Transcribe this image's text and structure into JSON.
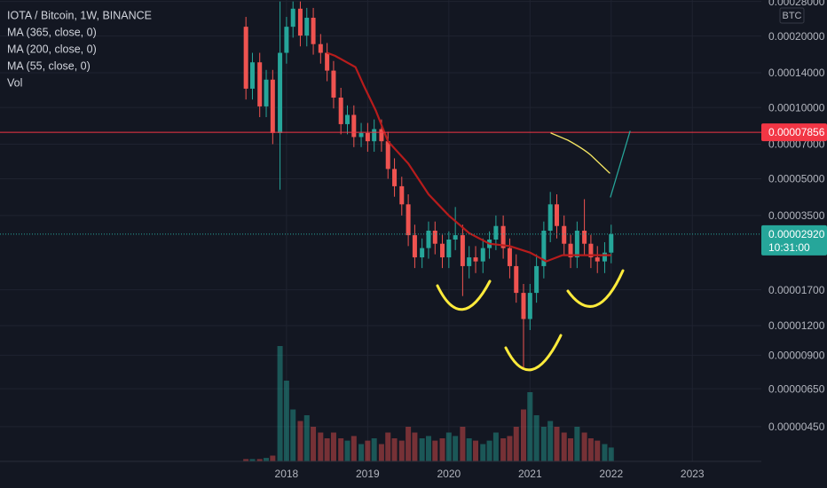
{
  "chart_data": {
    "type": "candlestick",
    "title": "IOTA / Bitcoin, 1W, BINANCE",
    "indicators": [
      "MA (365, close, 0)",
      "MA (200, close, 0)",
      "MA (55, close, 0)",
      "Vol"
    ],
    "currency": "BTC",
    "log_scale": true,
    "grid": true,
    "up_color": "#26a69a",
    "down_color": "#ef5350",
    "x": [
      2017.5,
      2017.58,
      2017.67,
      2017.75,
      2017.83,
      2017.92,
      2018,
      2018.08,
      2018.17,
      2018.25,
      2018.33,
      2018.42,
      2018.5,
      2018.58,
      2018.67,
      2018.75,
      2018.83,
      2018.92,
      2019,
      2019.08,
      2019.17,
      2019.25,
      2019.33,
      2019.42,
      2019.5,
      2019.58,
      2019.67,
      2019.75,
      2019.83,
      2019.92,
      2020,
      2020.08,
      2020.17,
      2020.25,
      2020.33,
      2020.42,
      2020.5,
      2020.58,
      2020.67,
      2020.75,
      2020.83,
      2020.92,
      2021,
      2021.08,
      2021.17,
      2021.25,
      2021.33,
      2021.42,
      2021.5,
      2021.58,
      2021.67,
      2021.75,
      2021.83,
      2021.92,
      2022
    ],
    "open": [
      0.000219,
      0.00012,
      0.000155,
      0.000101,
      0.000131,
      7.8e-05,
      0.00017,
      0.000219,
      0.000261,
      0.000201,
      0.000239,
      0.000185,
      0.00017,
      0.000143,
      0.00011,
      8.5e-05,
      9.3e-05,
      7.5e-05,
      7.8e-05,
      7.2e-05,
      8.1e-05,
      7.2e-05,
      5.5e-05,
      4.65e-05,
      3.9e-05,
      2.89e-05,
      2.33e-05,
      2.55e-05,
      3.02e-05,
      2.66e-05,
      2.33e-05,
      2.77e-05,
      2.89e-05,
      2.14e-05,
      2.33e-05,
      2.24e-05,
      2.55e-05,
      2.77e-05,
      3.16e-05,
      2.55e-05,
      2.14e-05,
      1.65e-05,
      1.28e-05,
      1.65e-05,
      2.14e-05,
      3.02e-05,
      3.9e-05,
      3.16e-05,
      2.66e-05,
      2.33e-05,
      3.02e-05,
      2.66e-05,
      2.33e-05,
      2.24e-05,
      2.44e-05
    ],
    "high": [
      0.000241,
      0.00017,
      0.00017,
      0.000144,
      0.000144,
      0.00028,
      0.000241,
      0.00028,
      0.00028,
      0.000263,
      0.000263,
      0.000204,
      0.000187,
      0.000157,
      0.000121,
      0.000102,
      0.000102,
      8.6e-05,
      8.6e-05,
      8.9e-05,
      8.9e-05,
      7.9e-05,
      6.1e-05,
      5.1e-05,
      4.3e-05,
      3.2e-05,
      2.8e-05,
      3.3e-05,
      3.3e-05,
      2.9e-05,
      3e-05,
      3.8e-05,
      3.2e-05,
      2.6e-05,
      2.6e-05,
      2.8e-05,
      3e-05,
      3.5e-05,
      3.5e-05,
      2.8e-05,
      2.4e-05,
      1.8e-05,
      1.8e-05,
      2.4e-05,
      3.3e-05,
      4.4e-05,
      4.3e-05,
      3.5e-05,
      2.9e-05,
      3.3e-05,
      4.1e-05,
      2.9e-05,
      2.6e-05,
      2.7e-05,
      3.2e-05
    ],
    "low": [
      0.000108,
      0.000108,
      9.1e-05,
      9.1e-05,
      7e-05,
      4.5e-05,
      0.000153,
      0.000197,
      0.000181,
      0.000181,
      0.000167,
      0.000153,
      0.000129,
      9.9e-05,
      7.7e-05,
      7.7e-05,
      6.8e-05,
      6.8e-05,
      6.5e-05,
      6.5e-05,
      6.5e-05,
      5e-05,
      4.2e-05,
      3.5e-05,
      2.6e-05,
      2.1e-05,
      2.1e-05,
      2.3e-05,
      2.4e-05,
      2.1e-05,
      2.1e-05,
      2.5e-05,
      1.6e-05,
      1.9e-05,
      2e-05,
      2e-05,
      2.3e-05,
      2.5e-05,
      2.3e-05,
      1.9e-05,
      1.5e-05,
      8e-06,
      1.15e-05,
      1.5e-05,
      1.9e-05,
      2.7e-05,
      2.8e-05,
      2.4e-05,
      2.1e-05,
      2.1e-05,
      2.4e-05,
      2.1e-05,
      2e-05,
      2e-05,
      2.2e-05
    ],
    "close": [
      0.00012,
      0.000155,
      0.000101,
      0.000131,
      7.8e-05,
      0.00017,
      0.000219,
      0.000261,
      0.000201,
      0.000239,
      0.000185,
      0.00017,
      0.000143,
      0.00011,
      8.5e-05,
      9.3e-05,
      7.5e-05,
      7.8e-05,
      7.2e-05,
      8.1e-05,
      7.2e-05,
      5.5e-05,
      4.65e-05,
      3.9e-05,
      2.89e-05,
      2.33e-05,
      2.55e-05,
      3.02e-05,
      2.66e-05,
      2.33e-05,
      2.77e-05,
      2.89e-05,
      2.14e-05,
      2.33e-05,
      2.24e-05,
      2.55e-05,
      2.77e-05,
      3.16e-05,
      2.55e-05,
      2.14e-05,
      1.65e-05,
      1.28e-05,
      1.65e-05,
      2.14e-05,
      3.02e-05,
      3.9e-05,
      3.16e-05,
      2.66e-05,
      2.33e-05,
      3.02e-05,
      2.66e-05,
      2.33e-05,
      2.24e-05,
      2.44e-05,
      2.92e-05
    ],
    "volume": [
      2,
      2,
      2,
      3,
      5,
      100,
      70,
      45,
      35,
      40,
      30,
      25,
      20,
      25,
      20,
      18,
      22,
      15,
      18,
      20,
      15,
      25,
      20,
      18,
      30,
      25,
      20,
      22,
      18,
      20,
      25,
      22,
      30,
      20,
      18,
      15,
      18,
      25,
      20,
      22,
      30,
      45,
      60,
      40,
      30,
      35,
      30,
      25,
      20,
      30,
      25,
      20,
      18,
      15,
      12
    ],
    "overlays": [
      {
        "color": "#b71c1c",
        "x": [
          2018.5,
          2018.6,
          2018.85,
          2018.95,
          2019.1,
          2019.25,
          2019.5,
          2019.75,
          2020,
          2020.25,
          2020.5,
          2020.75,
          2021,
          2021.2,
          2021.4,
          2021.6,
          2021.8,
          2022
        ],
        "values": [
          0.00017,
          0.000165,
          0.000148,
          0.000124,
          9.7e-05,
          7.2e-05,
          5.8e-05,
          4.3e-05,
          3.5e-05,
          2.95e-05,
          2.66e-05,
          2.6e-05,
          2.44e-05,
          2.24e-05,
          2.38e-05,
          2.38e-05,
          2.38e-05,
          2.38e-05
        ]
      }
    ],
    "price_line": {
      "value": 7.856e-05,
      "color": "#f23645"
    },
    "last_price": {
      "value": 2.92e-05,
      "label": "0.00002920"
    },
    "countdown": "10:31:00",
    "xlim": [
      2014.47,
      2023.85
    ],
    "xticks": [
      2018,
      2019,
      2020,
      2021,
      2022,
      2023
    ],
    "ylim": [
      3.21e-06,
      0.000284
    ],
    "yticks": [
      {
        "value": 0.00028,
        "label": "0.00028000"
      },
      {
        "value": 0.0002,
        "label": "0.00020000"
      },
      {
        "value": 0.00014,
        "label": "0.00014000"
      },
      {
        "value": 0.0001,
        "label": "0.00010000"
      },
      {
        "value": 7e-05,
        "label": "0.00007000"
      },
      {
        "value": 5e-05,
        "label": "0.00005000"
      },
      {
        "value": 3.5e-05,
        "label": "0.00003500"
      },
      {
        "value": 1.7e-05,
        "label": "0.00001700"
      },
      {
        "value": 1.2e-05,
        "label": "0.00001200"
      },
      {
        "value": 9e-06,
        "label": "0.00000900"
      },
      {
        "value": 6.5e-06,
        "label": "0.00000650"
      },
      {
        "value": 4.5e-06,
        "label": "0.00000450"
      }
    ]
  }
}
